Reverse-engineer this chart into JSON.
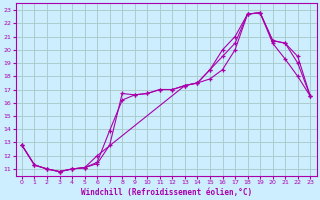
{
  "xlabel": "Windchill (Refroidissement éolien,°C)",
  "bg_color": "#cceeff",
  "grid_color": "#aacccc",
  "line_color": "#aa00aa",
  "xlim": [
    -0.5,
    23.5
  ],
  "ylim": [
    10.5,
    23.5
  ],
  "xticks": [
    0,
    1,
    2,
    3,
    4,
    5,
    6,
    7,
    8,
    9,
    10,
    11,
    12,
    13,
    14,
    15,
    16,
    17,
    18,
    19,
    20,
    21,
    22,
    23
  ],
  "yticks": [
    11,
    12,
    13,
    14,
    15,
    16,
    17,
    18,
    19,
    20,
    21,
    22,
    23
  ],
  "line1_x": [
    0,
    1,
    2,
    3,
    4,
    5,
    6,
    7,
    8,
    9,
    10,
    11,
    12,
    13,
    14,
    15,
    16,
    17,
    18,
    19,
    20,
    21,
    22,
    23
  ],
  "line1_y": [
    12.8,
    11.3,
    11.0,
    10.8,
    11.0,
    11.1,
    11.4,
    12.8,
    16.7,
    16.6,
    16.7,
    17.0,
    17.0,
    17.3,
    17.5,
    18.5,
    19.5,
    20.5,
    22.7,
    22.8,
    20.5,
    19.3,
    18.0,
    16.5
  ],
  "line2_x": [
    0,
    1,
    2,
    3,
    4,
    5,
    6,
    7,
    8,
    9,
    10,
    11,
    12,
    13,
    14,
    15,
    16,
    17,
    18,
    19,
    20,
    21,
    22,
    23
  ],
  "line2_y": [
    12.8,
    11.3,
    11.0,
    10.8,
    11.0,
    11.1,
    11.5,
    13.9,
    16.2,
    16.6,
    16.7,
    17.0,
    17.0,
    17.3,
    17.5,
    18.5,
    20.0,
    21.0,
    22.7,
    22.8,
    20.7,
    20.5,
    19.5,
    16.5
  ],
  "line3_x": [
    0,
    1,
    2,
    3,
    4,
    5,
    6,
    13,
    14,
    15,
    16,
    17,
    18,
    19,
    20,
    21,
    22,
    23
  ],
  "line3_y": [
    12.8,
    11.3,
    11.0,
    10.8,
    11.0,
    11.1,
    12.0,
    17.3,
    17.5,
    17.8,
    18.5,
    20.0,
    22.7,
    22.8,
    20.7,
    20.5,
    19.0,
    16.5
  ]
}
